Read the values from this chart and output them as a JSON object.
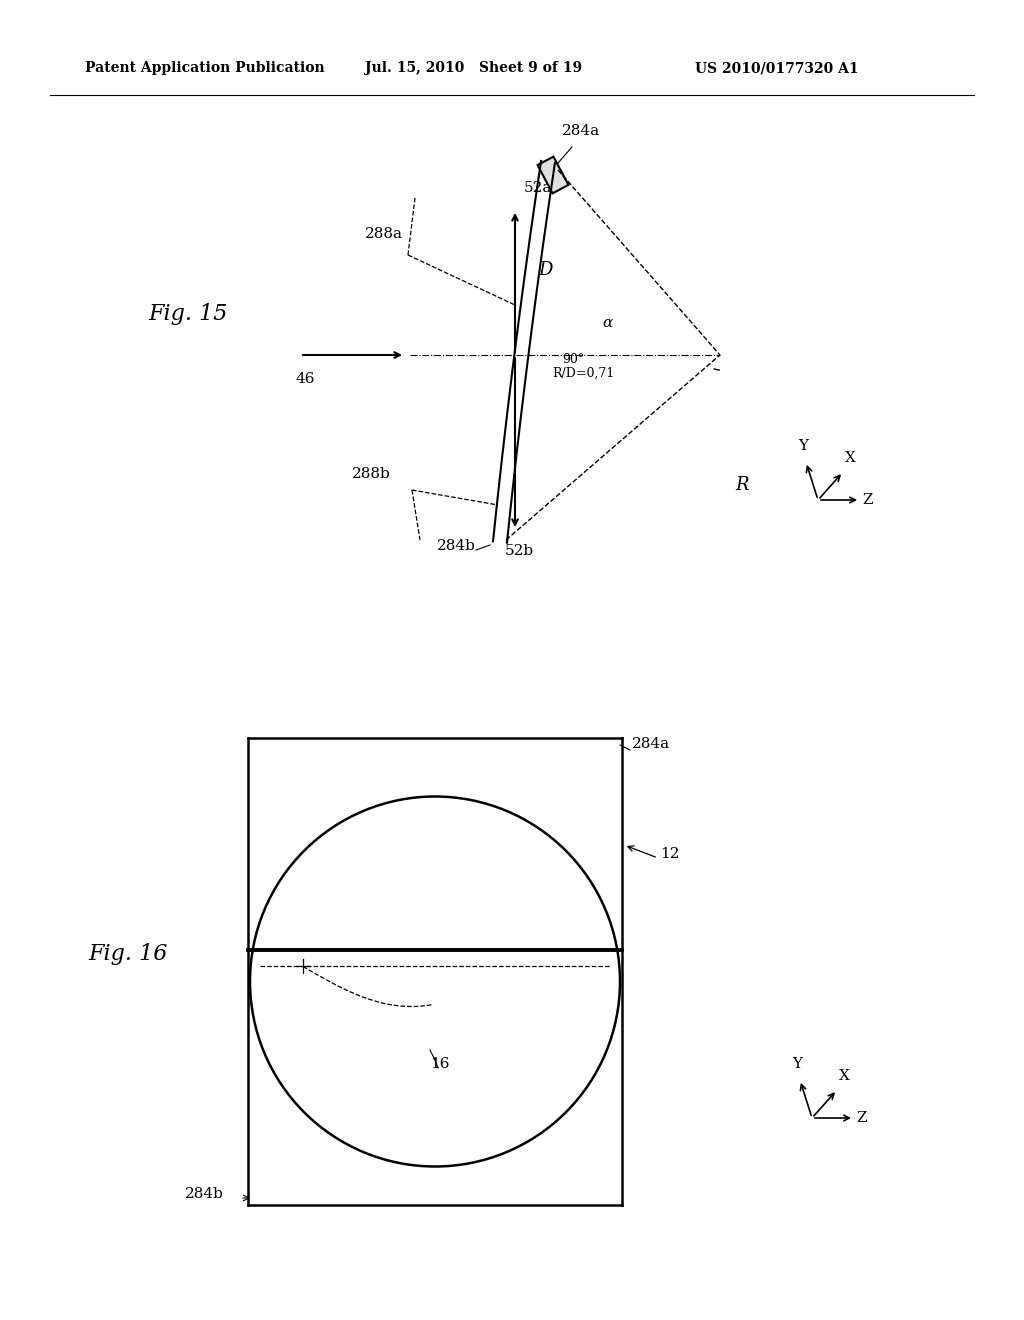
{
  "header_left": "Patent Application Publication",
  "header_center": "Jul. 15, 2010   Sheet 9 of 19",
  "header_right": "US 2010/0177320 A1",
  "fig15_label": "Fig. 15",
  "fig16_label": "Fig. 16",
  "bg_color": "#ffffff",
  "line_color": "#000000",
  "text_color": "#000000"
}
